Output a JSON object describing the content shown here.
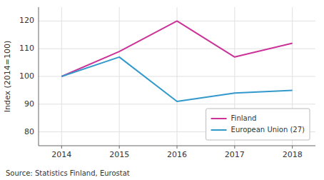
{
  "chart_data": {
    "type": "line",
    "x": [
      2014,
      2015,
      2016,
      2017,
      2018
    ],
    "series": [
      {
        "name": "Finland",
        "color": "#cc3399",
        "values": [
          100,
          109,
          120,
          107,
          112
        ]
      },
      {
        "name": "European Union (27)",
        "color": "#3399cc",
        "values": [
          100,
          107,
          91,
          94,
          95
        ]
      }
    ],
    "y_label": "Index (2014=100)",
    "xlim": [
      2013.6,
      2018.4
    ],
    "xticks": [
      2014,
      2015,
      2016,
      2017,
      2018
    ],
    "ylim": [
      75,
      125
    ],
    "yticks": [
      80,
      90,
      100,
      110,
      120
    ],
    "grid": true,
    "legend": "lower right",
    "source": "Source: Statistics Finland, Eurostat"
  }
}
